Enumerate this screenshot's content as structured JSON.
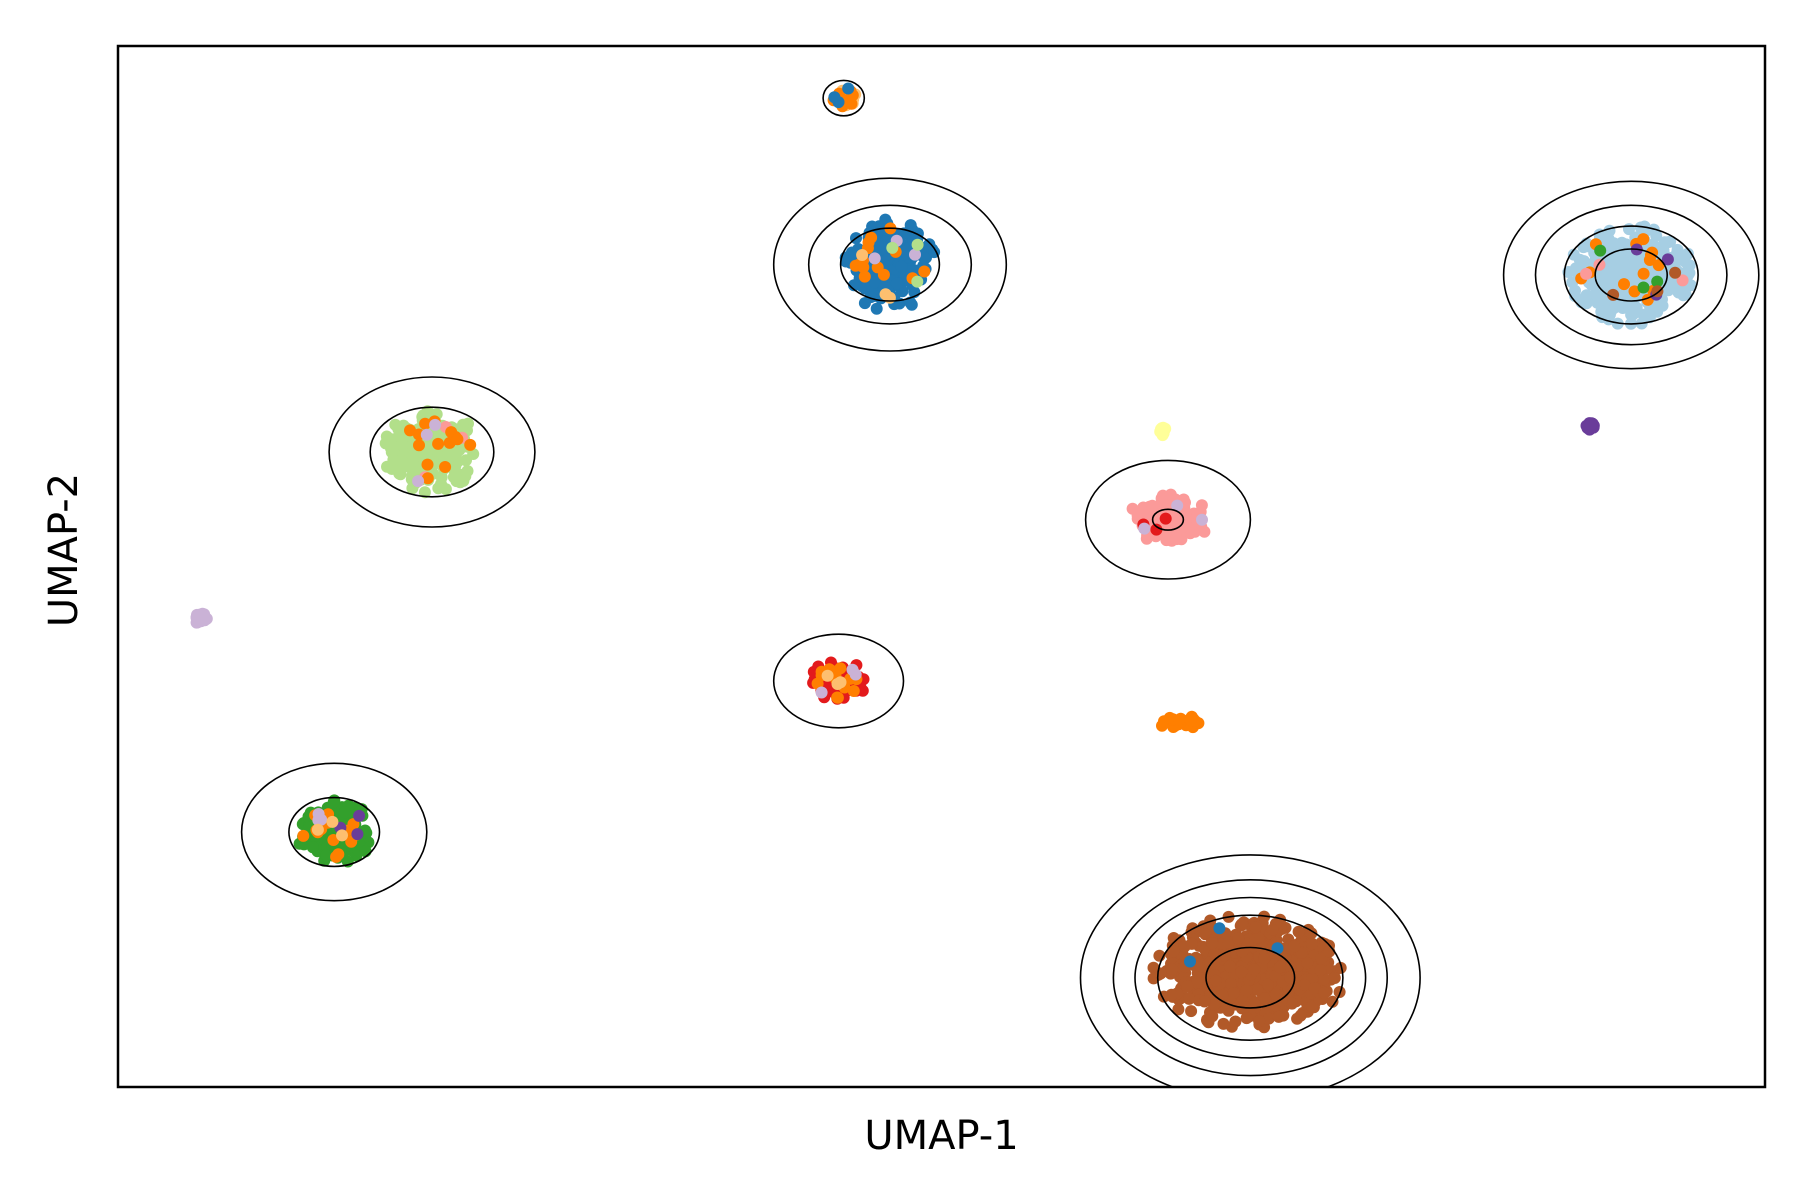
{
  "chart_data": {
    "type": "scatter",
    "title": "",
    "xlabel": "UMAP-1",
    "ylabel": "UMAP-2",
    "xlim": [
      0,
      16
    ],
    "ylim": [
      0,
      10
    ],
    "xticks": [],
    "yticks": [],
    "grid": false,
    "legend": "none",
    "palette": {
      "light-blue": "#a6cee3",
      "blue": "#1f78b4",
      "light-green": "#b2df8a",
      "green": "#33a02c",
      "pink": "#fb9a99",
      "red": "#e31a1c",
      "light-orange": "#fdbf6f",
      "orange": "#ff7f00",
      "lavender": "#cab2d6",
      "purple": "#6a3d9a",
      "yellow": "#ffff99",
      "brown": "#b15928"
    },
    "clusters": [
      {
        "center": [
          7.05,
          9.5
        ],
        "spread": [
          0.12,
          0.12
        ],
        "dominant": "light-orange",
        "mix": [
          "orange",
          "blue"
        ]
      },
      {
        "center": [
          7.5,
          7.9
        ],
        "spread": [
          0.45,
          0.45
        ],
        "dominant": "blue",
        "mix": [
          "orange",
          "light-orange",
          "lavender",
          "light-green"
        ]
      },
      {
        "center": [
          14.7,
          7.8
        ],
        "spread": [
          0.62,
          0.48
        ],
        "dominant": "light-blue",
        "mix": [
          "orange",
          "pink",
          "green",
          "purple",
          "brown"
        ]
      },
      {
        "center": [
          3.05,
          6.1
        ],
        "spread": [
          0.48,
          0.4
        ],
        "dominant": "light-green",
        "mix": [
          "pink",
          "orange",
          "lavender"
        ]
      },
      {
        "center": [
          10.2,
          5.45
        ],
        "spread": [
          0.4,
          0.25
        ],
        "dominant": "pink",
        "mix": [
          "red",
          "lavender"
        ]
      },
      {
        "center": [
          7.0,
          3.9
        ],
        "spread": [
          0.28,
          0.2
        ],
        "dominant": "red",
        "mix": [
          "orange",
          "lavender",
          "light-orange"
        ]
      },
      {
        "center": [
          2.1,
          2.45
        ],
        "spread": [
          0.38,
          0.32
        ],
        "dominant": "green",
        "mix": [
          "orange",
          "lavender",
          "purple",
          "light-orange"
        ]
      },
      {
        "center": [
          11.0,
          1.1
        ],
        "spread": [
          0.95,
          0.55
        ],
        "dominant": "brown",
        "mix": [
          "blue"
        ]
      },
      {
        "center": [
          10.35,
          3.5
        ],
        "spread": [
          0.25,
          0.07
        ],
        "dominant": "orange",
        "mix": []
      },
      {
        "center": [
          0.8,
          4.5
        ],
        "spread": [
          0.07,
          0.05
        ],
        "dominant": "lavender",
        "mix": []
      },
      {
        "center": [
          14.3,
          6.35
        ],
        "spread": [
          0.06,
          0.04
        ],
        "dominant": "purple",
        "mix": []
      },
      {
        "center": [
          10.15,
          6.3
        ],
        "spread": [
          0.03,
          0.04
        ],
        "dominant": "yellow",
        "mix": []
      }
    ],
    "density_contours": [
      {
        "center": [
          7.05,
          9.5
        ],
        "radii": [
          [
            0.2,
            0.17
          ]
        ]
      },
      {
        "center": [
          7.5,
          7.9
        ],
        "radii": [
          [
            0.48,
            0.35
          ],
          [
            0.79,
            0.57
          ],
          [
            1.13,
            0.83
          ]
        ]
      },
      {
        "center": [
          14.7,
          7.8
        ],
        "radii": [
          [
            0.35,
            0.25
          ],
          [
            0.65,
            0.47
          ],
          [
            0.93,
            0.67
          ],
          [
            1.24,
            0.9
          ]
        ]
      },
      {
        "center": [
          3.05,
          6.1
        ],
        "radii": [
          [
            0.6,
            0.43
          ],
          [
            1.0,
            0.72
          ]
        ]
      },
      {
        "center": [
          10.2,
          5.45
        ],
        "radii": [
          [
            0.15,
            0.1
          ],
          [
            0.8,
            0.57
          ]
        ]
      },
      {
        "center": [
          7.0,
          3.9
        ],
        "radii": [
          [
            0.63,
            0.45
          ]
        ]
      },
      {
        "center": [
          2.1,
          2.45
        ],
        "radii": [
          [
            0.44,
            0.33
          ],
          [
            0.9,
            0.66
          ]
        ]
      },
      {
        "center": [
          11.0,
          1.05
        ],
        "radii": [
          [
            0.43,
            0.29
          ],
          [
            0.9,
            0.6
          ],
          [
            1.12,
            0.77
          ],
          [
            1.33,
            0.94
          ],
          [
            1.65,
            1.18
          ]
        ]
      }
    ]
  }
}
